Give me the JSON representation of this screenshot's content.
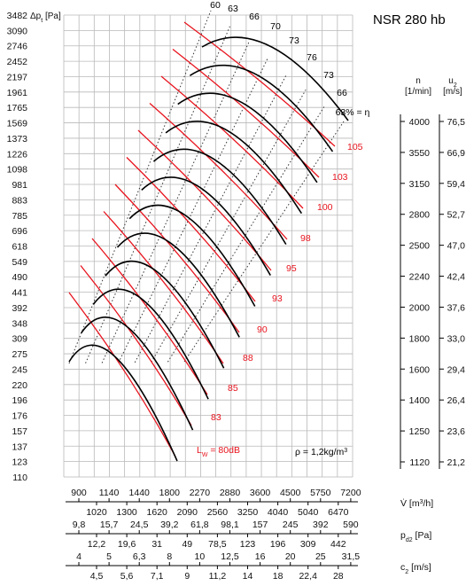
{
  "chart_data": {
    "type": "line",
    "title": "NSR 280 hb",
    "xlabel": "V [m3/h]",
    "ylabel": "Δpt [Pa]",
    "y_axis_unit_label": "Δp",
    "y_axis_unit_sub": "t",
    "y_axis_unit_suffix": " [Pa]",
    "y_scale": "log",
    "x_scale": "log",
    "grid": true,
    "x_range_m3h": [
      850,
      7400
    ],
    "y_ticks": [
      110,
      123,
      137,
      157,
      176,
      196,
      220,
      245,
      275,
      309,
      348,
      392,
      441,
      490,
      549,
      618,
      696,
      785,
      883,
      981,
      1098,
      1226,
      1373,
      1569,
      1765,
      1961,
      2197,
      2452,
      2746,
      3090,
      3482
    ],
    "x_axis_scales": [
      {
        "label": "V [m3/h]",
        "unit": "[m",
        "sup": "3",
        "unit_end": "/h]",
        "top": [
          "900",
          "1140",
          "1440",
          "1800",
          "2270",
          "2880",
          "3600",
          "4500",
          "5750",
          "7200"
        ],
        "bottom": [
          "1020",
          "1300",
          "1620",
          "2090",
          "2560",
          "3250",
          "4040",
          "5040",
          "6470"
        ]
      },
      {
        "label": "pd2 [Pa]",
        "unit": "[Pa]",
        "sub": "d2",
        "prefix": "p",
        "top": [
          "9,8",
          "15,7",
          "24,5",
          "39,2",
          "61,8",
          "98,1",
          "157",
          "245",
          "392",
          "590"
        ],
        "bottom": [
          "12,2",
          "19,6",
          "31",
          "49",
          "78,5",
          "123",
          "196",
          "309",
          "442"
        ]
      },
      {
        "label": "c2 [m/s]",
        "unit": "[m/s]",
        "sub": "2",
        "prefix": "c",
        "top": [
          "4",
          "5",
          "6,3",
          "8",
          "10",
          "12,5",
          "16",
          "20",
          "25",
          "31,5"
        ],
        "bottom": [
          "4,5",
          "5,6",
          "7,1",
          "9",
          "11,2",
          "14",
          "18",
          "22,4",
          "28"
        ]
      }
    ],
    "right_scales": {
      "n": {
        "label": "n",
        "unit": "[1/min]",
        "values": [
          "1120",
          "1250",
          "1400",
          "1600",
          "1800",
          "2000",
          "2240",
          "2500",
          "2800",
          "3150",
          "3550",
          "4000"
        ]
      },
      "u2": {
        "label": "u",
        "sub": "2",
        "unit": "[m/s]",
        "values": [
          "21,2",
          "23,6",
          "26,4",
          "29,4",
          "33,0",
          "37,6",
          "42,4",
          "47,0",
          "52,7",
          "59,4",
          "66,9",
          "76,5"
        ]
      }
    },
    "efficiency_labels": [
      "60",
      "63",
      "66",
      "70",
      "73",
      "76",
      "73",
      "66",
      "63% = η"
    ],
    "noise_labels": [
      "LW = 80dB",
      "83",
      "85",
      "88",
      "90",
      "93",
      "95",
      "98",
      "100",
      "103",
      "105"
    ],
    "density_note": "ρ = 1,2kg/m3",
    "colors": {
      "curves": "#000000",
      "noise": "#e8141e",
      "grid": "#b9b9b9",
      "text": "#111111"
    }
  }
}
